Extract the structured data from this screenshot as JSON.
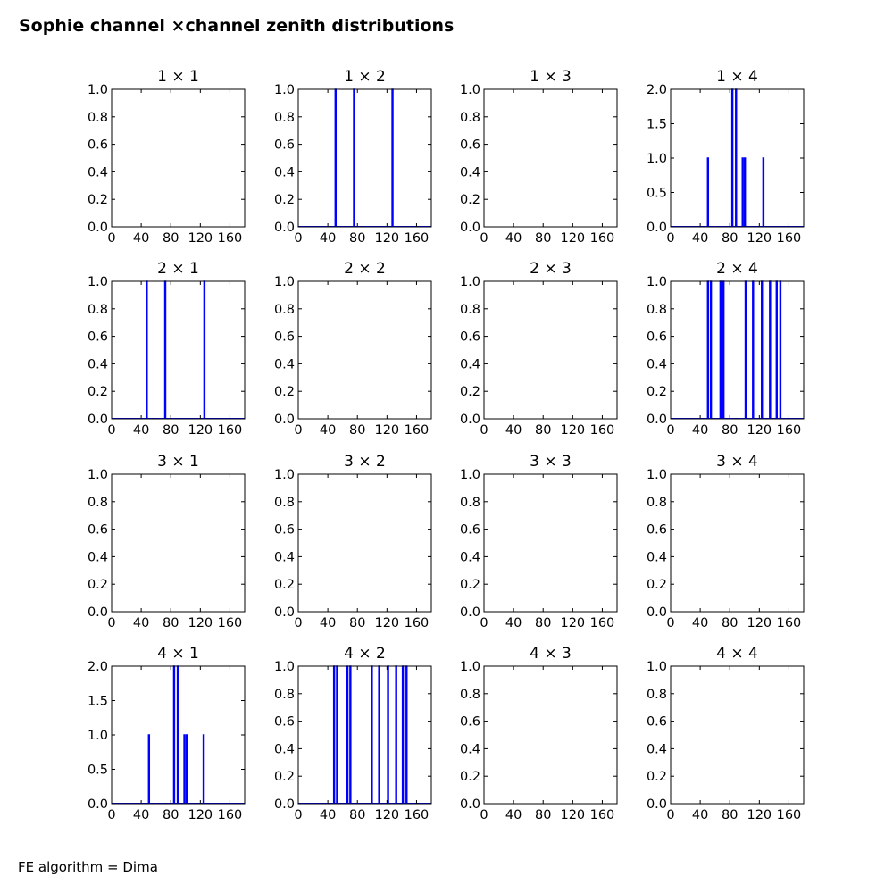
{
  "figure": {
    "title": "Sophie channel ×channel zenith distributions",
    "footer": "FE algorithm = Dima"
  },
  "style": {
    "line_color": "#0000ff",
    "axis_color": "#000000",
    "background": "#ffffff"
  },
  "chart_data": [
    {
      "type": "histogram",
      "title": "1 × 1",
      "xlim": [
        0,
        180
      ],
      "xticks": [
        "0",
        "40",
        "80",
        "120",
        "160"
      ],
      "ylim": [
        0,
        1.0
      ],
      "yticks": [
        "0.0",
        "0.2",
        "0.4",
        "0.6",
        "0.8",
        "1.0"
      ],
      "bins": []
    },
    {
      "type": "histogram",
      "title": "1 × 2",
      "xlim": [
        0,
        180
      ],
      "xticks": [
        "0",
        "40",
        "80",
        "120",
        "160"
      ],
      "ylim": [
        0,
        1.0
      ],
      "yticks": [
        "0.0",
        "0.2",
        "0.4",
        "0.6",
        "0.8",
        "1.0"
      ],
      "bins": [
        {
          "x": 50,
          "y": 1
        },
        {
          "x": 75,
          "y": 1
        },
        {
          "x": 127,
          "y": 1
        }
      ]
    },
    {
      "type": "histogram",
      "title": "1 × 3",
      "xlim": [
        0,
        180
      ],
      "xticks": [
        "0",
        "40",
        "80",
        "120",
        "160"
      ],
      "ylim": [
        0,
        1.0
      ],
      "yticks": [
        "0.0",
        "0.2",
        "0.4",
        "0.6",
        "0.8",
        "1.0"
      ],
      "bins": []
    },
    {
      "type": "histogram",
      "title": "1 × 4",
      "xlim": [
        0,
        180
      ],
      "xticks": [
        "0",
        "40",
        "80",
        "120",
        "160"
      ],
      "ylim": [
        0,
        2.0
      ],
      "yticks": [
        "0.0",
        "0.5",
        "1.0",
        "1.5",
        "2.0"
      ],
      "bins": [
        {
          "x": 50,
          "y": 1
        },
        {
          "x": 83,
          "y": 2
        },
        {
          "x": 88,
          "y": 2
        },
        {
          "x": 97,
          "y": 1
        },
        {
          "x": 100,
          "y": 1
        },
        {
          "x": 125,
          "y": 1
        }
      ]
    },
    {
      "type": "histogram",
      "title": "2 × 1",
      "xlim": [
        0,
        180
      ],
      "xticks": [
        "0",
        "40",
        "80",
        "120",
        "160"
      ],
      "ylim": [
        0,
        1.0
      ],
      "yticks": [
        "0.0",
        "0.2",
        "0.4",
        "0.6",
        "0.8",
        "1.0"
      ],
      "bins": [
        {
          "x": 47,
          "y": 1
        },
        {
          "x": 72,
          "y": 1
        },
        {
          "x": 125,
          "y": 1
        }
      ]
    },
    {
      "type": "histogram",
      "title": "2 × 2",
      "xlim": [
        0,
        180
      ],
      "xticks": [
        "0",
        "40",
        "80",
        "120",
        "160"
      ],
      "ylim": [
        0,
        1.0
      ],
      "yticks": [
        "0.0",
        "0.2",
        "0.4",
        "0.6",
        "0.8",
        "1.0"
      ],
      "bins": []
    },
    {
      "type": "histogram",
      "title": "2 × 3",
      "xlim": [
        0,
        180
      ],
      "xticks": [
        "0",
        "40",
        "80",
        "120",
        "160"
      ],
      "ylim": [
        0,
        1.0
      ],
      "yticks": [
        "0.0",
        "0.2",
        "0.4",
        "0.6",
        "0.8",
        "1.0"
      ],
      "bins": []
    },
    {
      "type": "histogram",
      "title": "2 × 4",
      "xlim": [
        0,
        180
      ],
      "xticks": [
        "0",
        "40",
        "80",
        "120",
        "160"
      ],
      "ylim": [
        0,
        1.0
      ],
      "yticks": [
        "0.0",
        "0.2",
        "0.4",
        "0.6",
        "0.8",
        "1.0"
      ],
      "bins": [
        {
          "x": 50,
          "y": 1
        },
        {
          "x": 54,
          "y": 1
        },
        {
          "x": 67,
          "y": 1
        },
        {
          "x": 71,
          "y": 1
        },
        {
          "x": 101,
          "y": 1
        },
        {
          "x": 111,
          "y": 1
        },
        {
          "x": 123,
          "y": 1
        },
        {
          "x": 134,
          "y": 1
        },
        {
          "x": 143,
          "y": 1
        },
        {
          "x": 148,
          "y": 1
        }
      ]
    },
    {
      "type": "histogram",
      "title": "3 × 1",
      "xlim": [
        0,
        180
      ],
      "xticks": [
        "0",
        "40",
        "80",
        "120",
        "160"
      ],
      "ylim": [
        0,
        1.0
      ],
      "yticks": [
        "0.0",
        "0.2",
        "0.4",
        "0.6",
        "0.8",
        "1.0"
      ],
      "bins": []
    },
    {
      "type": "histogram",
      "title": "3 × 2",
      "xlim": [
        0,
        180
      ],
      "xticks": [
        "0",
        "40",
        "80",
        "120",
        "160"
      ],
      "ylim": [
        0,
        1.0
      ],
      "yticks": [
        "0.0",
        "0.2",
        "0.4",
        "0.6",
        "0.8",
        "1.0"
      ],
      "bins": []
    },
    {
      "type": "histogram",
      "title": "3 × 3",
      "xlim": [
        0,
        180
      ],
      "xticks": [
        "0",
        "40",
        "80",
        "120",
        "160"
      ],
      "ylim": [
        0,
        1.0
      ],
      "yticks": [
        "0.0",
        "0.2",
        "0.4",
        "0.6",
        "0.8",
        "1.0"
      ],
      "bins": []
    },
    {
      "type": "histogram",
      "title": "3 × 4",
      "xlim": [
        0,
        180
      ],
      "xticks": [
        "0",
        "40",
        "80",
        "120",
        "160"
      ],
      "ylim": [
        0,
        1.0
      ],
      "yticks": [
        "0.0",
        "0.2",
        "0.4",
        "0.6",
        "0.8",
        "1.0"
      ],
      "bins": []
    },
    {
      "type": "histogram",
      "title": "4 × 1",
      "xlim": [
        0,
        180
      ],
      "xticks": [
        "0",
        "40",
        "80",
        "120",
        "160"
      ],
      "ylim": [
        0,
        2.0
      ],
      "yticks": [
        "0.0",
        "0.5",
        "1.0",
        "1.5",
        "2.0"
      ],
      "bins": [
        {
          "x": 50,
          "y": 1
        },
        {
          "x": 84,
          "y": 2
        },
        {
          "x": 89,
          "y": 2
        },
        {
          "x": 98,
          "y": 1
        },
        {
          "x": 101,
          "y": 1
        },
        {
          "x": 124,
          "y": 1
        }
      ]
    },
    {
      "type": "histogram",
      "title": "4 × 2",
      "xlim": [
        0,
        180
      ],
      "xticks": [
        "0",
        "40",
        "80",
        "120",
        "160"
      ],
      "ylim": [
        0,
        1.0
      ],
      "yticks": [
        "0.0",
        "0.2",
        "0.4",
        "0.6",
        "0.8",
        "1.0"
      ],
      "bins": [
        {
          "x": 48,
          "y": 1
        },
        {
          "x": 52,
          "y": 1
        },
        {
          "x": 66,
          "y": 1
        },
        {
          "x": 70,
          "y": 1
        },
        {
          "x": 99,
          "y": 1
        },
        {
          "x": 109,
          "y": 1
        },
        {
          "x": 121,
          "y": 1
        },
        {
          "x": 132,
          "y": 1
        },
        {
          "x": 141,
          "y": 1
        },
        {
          "x": 146,
          "y": 1
        }
      ]
    },
    {
      "type": "histogram",
      "title": "4 × 3",
      "xlim": [
        0,
        180
      ],
      "xticks": [
        "0",
        "40",
        "80",
        "120",
        "160"
      ],
      "ylim": [
        0,
        1.0
      ],
      "yticks": [
        "0.0",
        "0.2",
        "0.4",
        "0.6",
        "0.8",
        "1.0"
      ],
      "bins": []
    },
    {
      "type": "histogram",
      "title": "4 × 4",
      "xlim": [
        0,
        180
      ],
      "xticks": [
        "0",
        "40",
        "80",
        "120",
        "160"
      ],
      "ylim": [
        0,
        1.0
      ],
      "yticks": [
        "0.0",
        "0.2",
        "0.4",
        "0.6",
        "0.8",
        "1.0"
      ],
      "bins": []
    }
  ]
}
